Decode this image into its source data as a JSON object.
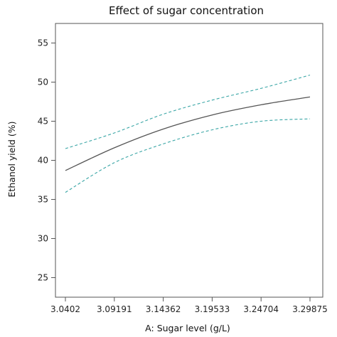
{
  "chart_data": {
    "type": "line",
    "title": "Effect of sugar concentration",
    "xlabel": "A: Sugar level  (g/L)",
    "ylabel": "Ethanol yield  (%)",
    "xlim": [
      3.0402,
      3.29875
    ],
    "ylim": [
      22.5,
      57.5
    ],
    "x_ticks": [
      "3.0402",
      "3.09191",
      "3.14362",
      "3.19533",
      "3.24704",
      "3.29875"
    ],
    "y_ticks": [
      "25",
      "30",
      "35",
      "40",
      "45",
      "50",
      "55"
    ],
    "grid": false,
    "legend": "none",
    "x": [
      3.0402,
      3.09191,
      3.14362,
      3.19533,
      3.24704,
      3.29875
    ],
    "series": [
      {
        "role": "prediction",
        "style": "solid",
        "color": "#555555",
        "values": [
          38.7,
          41.6,
          44.0,
          45.8,
          47.1,
          48.1
        ]
      },
      {
        "role": "upper-confidence",
        "style": "dashed",
        "color": "#3aa6a6",
        "values": [
          41.5,
          43.5,
          45.9,
          47.7,
          49.2,
          50.9
        ]
      },
      {
        "role": "lower-confidence",
        "style": "dashed",
        "color": "#3aa6a6",
        "values": [
          35.9,
          39.7,
          42.1,
          43.9,
          45.0,
          45.3
        ]
      }
    ]
  }
}
